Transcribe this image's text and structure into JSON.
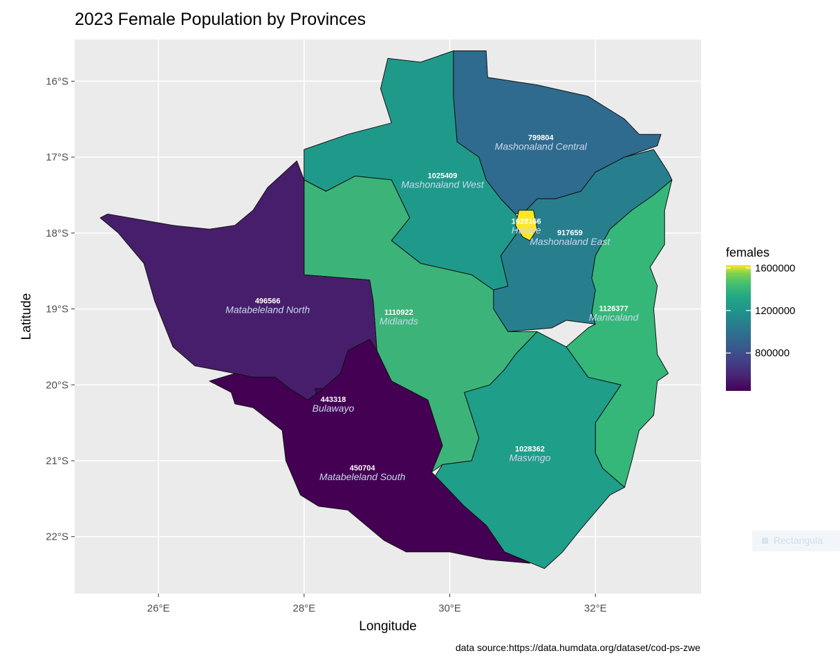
{
  "title": "2023 Female Population by Provinces",
  "caption": "data source:https://data.humdata.org/dataset/cod-ps-zwe",
  "overlay_chip": {
    "icon": "rectangle-icon",
    "text": "Rectangula"
  },
  "chart_data": {
    "type": "choropleth",
    "title": "2023 Female Population by Provinces",
    "xlabel": "Longitude",
    "ylabel": "Latitude",
    "xlim": [
      24.85,
      33.45
    ],
    "ylim": [
      -22.75,
      -15.45
    ],
    "x_ticks": [
      {
        "value": 26,
        "label": "26°E"
      },
      {
        "value": 28,
        "label": "28°E"
      },
      {
        "value": 30,
        "label": "30°E"
      },
      {
        "value": 32,
        "label": "32°E"
      }
    ],
    "y_ticks": [
      {
        "value": -16,
        "label": "16°S"
      },
      {
        "value": -17,
        "label": "17°S"
      },
      {
        "value": -18,
        "label": "18°S"
      },
      {
        "value": -19,
        "label": "19°S"
      },
      {
        "value": -20,
        "label": "20°S"
      },
      {
        "value": -21,
        "label": "21°S"
      },
      {
        "value": -22,
        "label": "22°S"
      }
    ],
    "grid": true,
    "fill_variable": "females",
    "color_scale": "viridis",
    "colors": {
      "panel_bg": "#ebebeb",
      "grid": "#ffffff",
      "border": "#111111",
      "value_label": "#ffffff",
      "name_label": "#c9d8ee"
    },
    "legend": {
      "title": "females",
      "position": "right",
      "range": [
        443318,
        1628166
      ],
      "breaks": [
        {
          "value": 800000,
          "label": "800000"
        },
        {
          "value": 1200000,
          "label": "1200000"
        },
        {
          "value": 1600000,
          "label": "1600000"
        }
      ]
    },
    "provinces": [
      {
        "name": "Mashonaland Central",
        "value_label": "799804",
        "value": 799804,
        "color": "#2e6b8e",
        "label_lon": 31.25,
        "label_lat": -16.85,
        "shape": [
          [
            30.05,
            -15.6
          ],
          [
            30.5,
            -15.6
          ],
          [
            30.52,
            -15.95
          ],
          [
            31.2,
            -16.05
          ],
          [
            31.9,
            -16.2
          ],
          [
            32.4,
            -16.5
          ],
          [
            32.6,
            -16.7
          ],
          [
            32.9,
            -16.7
          ],
          [
            32.85,
            -16.85
          ],
          [
            32.4,
            -17.0
          ],
          [
            32.0,
            -17.2
          ],
          [
            31.8,
            -17.45
          ],
          [
            31.45,
            -17.55
          ],
          [
            31.2,
            -17.55
          ],
          [
            31.05,
            -17.7
          ],
          [
            30.9,
            -17.75
          ],
          [
            30.7,
            -17.55
          ],
          [
            30.5,
            -17.3
          ],
          [
            30.4,
            -17.0
          ],
          [
            30.1,
            -16.8
          ],
          [
            30.05,
            -16.2
          ]
        ]
      },
      {
        "name": "Mashonaland West",
        "value_label": "1025409",
        "value": 1025409,
        "color": "#1f9a8a",
        "label_lon": 29.9,
        "label_lat": -17.35,
        "shape": [
          [
            28.0,
            -16.9
          ],
          [
            28.6,
            -16.7
          ],
          [
            29.2,
            -16.55
          ],
          [
            29.05,
            -16.1
          ],
          [
            29.15,
            -15.7
          ],
          [
            29.6,
            -15.75
          ],
          [
            30.05,
            -15.6
          ],
          [
            30.05,
            -16.2
          ],
          [
            30.1,
            -16.8
          ],
          [
            30.4,
            -17.0
          ],
          [
            30.5,
            -17.3
          ],
          [
            30.7,
            -17.55
          ],
          [
            30.9,
            -17.75
          ],
          [
            31.0,
            -17.9
          ],
          [
            30.85,
            -18.1
          ],
          [
            30.7,
            -18.3
          ],
          [
            30.8,
            -18.7
          ],
          [
            30.6,
            -18.75
          ],
          [
            30.3,
            -18.55
          ],
          [
            29.6,
            -18.4
          ],
          [
            29.2,
            -18.1
          ],
          [
            29.45,
            -17.8
          ],
          [
            29.2,
            -17.3
          ],
          [
            28.7,
            -17.25
          ],
          [
            28.3,
            -17.45
          ],
          [
            28.0,
            -17.3
          ]
        ]
      },
      {
        "name": "Harare",
        "value_label": "1628166",
        "value": 1628166,
        "color": "#fde725",
        "label_lon": 31.05,
        "label_lat": -17.95,
        "shape": [
          [
            30.95,
            -17.7
          ],
          [
            31.15,
            -17.7
          ],
          [
            31.2,
            -17.95
          ],
          [
            31.1,
            -18.1
          ],
          [
            31.0,
            -18.05
          ],
          [
            30.9,
            -17.9
          ]
        ]
      },
      {
        "name": "Mashonaland East",
        "value_label": "917659",
        "value": 917659,
        "color": "#277f8e",
        "label_lon": 31.65,
        "label_lat": -18.1,
        "shape": [
          [
            31.05,
            -17.7
          ],
          [
            31.2,
            -17.55
          ],
          [
            31.45,
            -17.55
          ],
          [
            31.8,
            -17.45
          ],
          [
            32.0,
            -17.2
          ],
          [
            32.4,
            -17.0
          ],
          [
            32.8,
            -16.9
          ],
          [
            33.0,
            -17.2
          ],
          [
            33.05,
            -17.3
          ],
          [
            32.8,
            -17.5
          ],
          [
            32.5,
            -17.7
          ],
          [
            32.2,
            -17.95
          ],
          [
            32.0,
            -18.3
          ],
          [
            31.95,
            -18.6
          ],
          [
            32.0,
            -18.75
          ],
          [
            31.95,
            -19.05
          ],
          [
            32.0,
            -19.2
          ],
          [
            31.6,
            -19.15
          ],
          [
            31.4,
            -19.25
          ],
          [
            30.8,
            -19.3
          ],
          [
            30.6,
            -19.0
          ],
          [
            30.6,
            -18.75
          ],
          [
            30.8,
            -18.7
          ],
          [
            30.7,
            -18.3
          ],
          [
            30.85,
            -18.1
          ],
          [
            31.0,
            -17.9
          ]
        ]
      },
      {
        "name": "Manicaland",
        "value_label": "1126377",
        "value": 1126377,
        "color": "#35b779",
        "label_lon": 32.25,
        "label_lat": -19.1,
        "shape": [
          [
            33.05,
            -17.3
          ],
          [
            32.95,
            -17.7
          ],
          [
            32.95,
            -18.15
          ],
          [
            32.75,
            -18.45
          ],
          [
            32.85,
            -18.7
          ],
          [
            32.8,
            -19.0
          ],
          [
            32.85,
            -19.6
          ],
          [
            33.0,
            -19.85
          ],
          [
            32.85,
            -19.95
          ],
          [
            32.8,
            -20.4
          ],
          [
            32.6,
            -20.6
          ],
          [
            32.5,
            -21.0
          ],
          [
            32.4,
            -21.35
          ],
          [
            32.1,
            -21.1
          ],
          [
            32.0,
            -20.9
          ],
          [
            32.0,
            -20.5
          ],
          [
            32.35,
            -20.0
          ],
          [
            31.9,
            -19.9
          ],
          [
            31.6,
            -19.5
          ],
          [
            31.9,
            -19.25
          ],
          [
            32.0,
            -19.2
          ],
          [
            31.95,
            -19.05
          ],
          [
            32.0,
            -18.75
          ],
          [
            31.95,
            -18.6
          ],
          [
            32.0,
            -18.3
          ],
          [
            32.2,
            -17.95
          ],
          [
            32.5,
            -17.7
          ],
          [
            32.8,
            -17.5
          ]
        ]
      },
      {
        "name": "Midlands",
        "value_label": "1110922",
        "value": 1110922,
        "color": "#3cb479",
        "label_lon": 29.3,
        "label_lat": -19.15,
        "shape": [
          [
            28.0,
            -17.3
          ],
          [
            28.3,
            -17.45
          ],
          [
            28.7,
            -17.25
          ],
          [
            29.2,
            -17.3
          ],
          [
            29.45,
            -17.8
          ],
          [
            29.2,
            -18.1
          ],
          [
            29.6,
            -18.4
          ],
          [
            30.3,
            -18.55
          ],
          [
            30.6,
            -18.75
          ],
          [
            30.6,
            -19.0
          ],
          [
            30.8,
            -19.3
          ],
          [
            31.2,
            -19.3
          ],
          [
            30.9,
            -19.6
          ],
          [
            30.75,
            -19.8
          ],
          [
            30.55,
            -20.0
          ],
          [
            30.2,
            -20.1
          ],
          [
            30.4,
            -20.7
          ],
          [
            30.3,
            -21.0
          ],
          [
            29.9,
            -21.05
          ],
          [
            29.75,
            -21.15
          ],
          [
            29.9,
            -20.8
          ],
          [
            29.7,
            -20.2
          ],
          [
            29.2,
            -19.95
          ],
          [
            29.0,
            -19.55
          ],
          [
            28.95,
            -18.9
          ],
          [
            28.9,
            -18.62
          ],
          [
            28.0,
            -18.55
          ]
        ]
      },
      {
        "name": "Masvingo",
        "value_label": "1028362",
        "value": 1028362,
        "color": "#1f9e89",
        "label_lon": 31.1,
        "label_lat": -20.95,
        "shape": [
          [
            30.2,
            -20.1
          ],
          [
            30.55,
            -20.0
          ],
          [
            30.75,
            -19.8
          ],
          [
            30.9,
            -19.6
          ],
          [
            31.2,
            -19.3
          ],
          [
            31.6,
            -19.5
          ],
          [
            31.9,
            -19.9
          ],
          [
            32.35,
            -20.0
          ],
          [
            32.0,
            -20.5
          ],
          [
            32.0,
            -20.9
          ],
          [
            32.1,
            -21.1
          ],
          [
            32.4,
            -21.35
          ],
          [
            32.2,
            -21.45
          ],
          [
            31.8,
            -21.9
          ],
          [
            31.55,
            -22.2
          ],
          [
            31.3,
            -22.42
          ],
          [
            30.75,
            -22.2
          ],
          [
            30.5,
            -21.85
          ],
          [
            30.2,
            -21.6
          ],
          [
            29.8,
            -21.2
          ],
          [
            29.9,
            -21.05
          ],
          [
            30.3,
            -21.0
          ],
          [
            30.4,
            -20.7
          ]
        ]
      },
      {
        "name": "Matabeleland North",
        "value_label": "496566",
        "value": 496566,
        "color": "#471e6b",
        "label_lon": 27.5,
        "label_lat": -19.0,
        "shape": [
          [
            27.9,
            -17.05
          ],
          [
            28.0,
            -17.3
          ],
          [
            28.0,
            -18.55
          ],
          [
            28.9,
            -18.62
          ],
          [
            28.95,
            -18.9
          ],
          [
            29.0,
            -19.55
          ],
          [
            28.9,
            -19.4
          ],
          [
            28.6,
            -19.55
          ],
          [
            28.5,
            -19.85
          ],
          [
            28.2,
            -20.1
          ],
          [
            28.05,
            -20.2
          ],
          [
            27.8,
            -20.05
          ],
          [
            27.6,
            -19.9
          ],
          [
            27.3,
            -19.9
          ],
          [
            27.05,
            -19.85
          ],
          [
            26.5,
            -19.75
          ],
          [
            26.2,
            -19.5
          ],
          [
            25.95,
            -18.9
          ],
          [
            25.8,
            -18.4
          ],
          [
            25.45,
            -18.0
          ],
          [
            25.2,
            -17.8
          ],
          [
            25.3,
            -17.75
          ],
          [
            26.2,
            -17.9
          ],
          [
            26.7,
            -17.95
          ],
          [
            27.05,
            -17.9
          ],
          [
            27.3,
            -17.7
          ],
          [
            27.5,
            -17.4
          ]
        ]
      },
      {
        "name": "Bulawayo",
        "value_label": "443318",
        "value": 443318,
        "color": "#450559",
        "label_lon": 28.4,
        "label_lat": -20.3,
        "shape": [
          [
            28.15,
            -20.05
          ],
          [
            28.55,
            -20.05
          ],
          [
            28.6,
            -20.25
          ],
          [
            28.45,
            -20.35
          ],
          [
            28.2,
            -20.3
          ]
        ]
      },
      {
        "name": "Matabeleland South",
        "value_label": "450704",
        "value": 450704,
        "color": "#440154",
        "label_lon": 28.8,
        "label_lat": -21.2,
        "shape": [
          [
            27.05,
            -19.85
          ],
          [
            27.3,
            -19.9
          ],
          [
            27.6,
            -19.9
          ],
          [
            27.8,
            -20.05
          ],
          [
            28.05,
            -20.2
          ],
          [
            28.2,
            -20.1
          ],
          [
            28.5,
            -19.85
          ],
          [
            28.6,
            -19.55
          ],
          [
            28.9,
            -19.4
          ],
          [
            29.0,
            -19.55
          ],
          [
            29.2,
            -19.95
          ],
          [
            29.7,
            -20.2
          ],
          [
            29.9,
            -20.8
          ],
          [
            29.75,
            -21.15
          ],
          [
            29.8,
            -21.2
          ],
          [
            30.2,
            -21.6
          ],
          [
            30.5,
            -21.85
          ],
          [
            30.75,
            -22.2
          ],
          [
            31.1,
            -22.35
          ],
          [
            30.5,
            -22.3
          ],
          [
            30.0,
            -22.2
          ],
          [
            29.4,
            -22.2
          ],
          [
            29.1,
            -22.05
          ],
          [
            28.6,
            -21.65
          ],
          [
            28.2,
            -21.6
          ],
          [
            27.95,
            -21.45
          ],
          [
            27.75,
            -21.0
          ],
          [
            27.7,
            -20.6
          ],
          [
            27.3,
            -20.3
          ],
          [
            27.05,
            -20.25
          ],
          [
            27.0,
            -20.1
          ],
          [
            26.7,
            -19.95
          ]
        ]
      }
    ]
  }
}
